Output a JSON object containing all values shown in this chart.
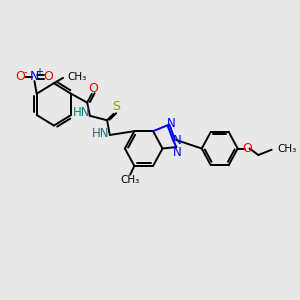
{
  "bg_color": "#e8e8e8",
  "bond_color": "#000000",
  "bond_width": 1.4,
  "fig_size": [
    3.0,
    3.0
  ],
  "dpi": 100,
  "blue": "#0000ff",
  "red": "#ff0000",
  "teal": "#008080",
  "sulfur": "#999900",
  "xlim": [
    0,
    10
  ],
  "ylim": [
    0,
    10
  ]
}
